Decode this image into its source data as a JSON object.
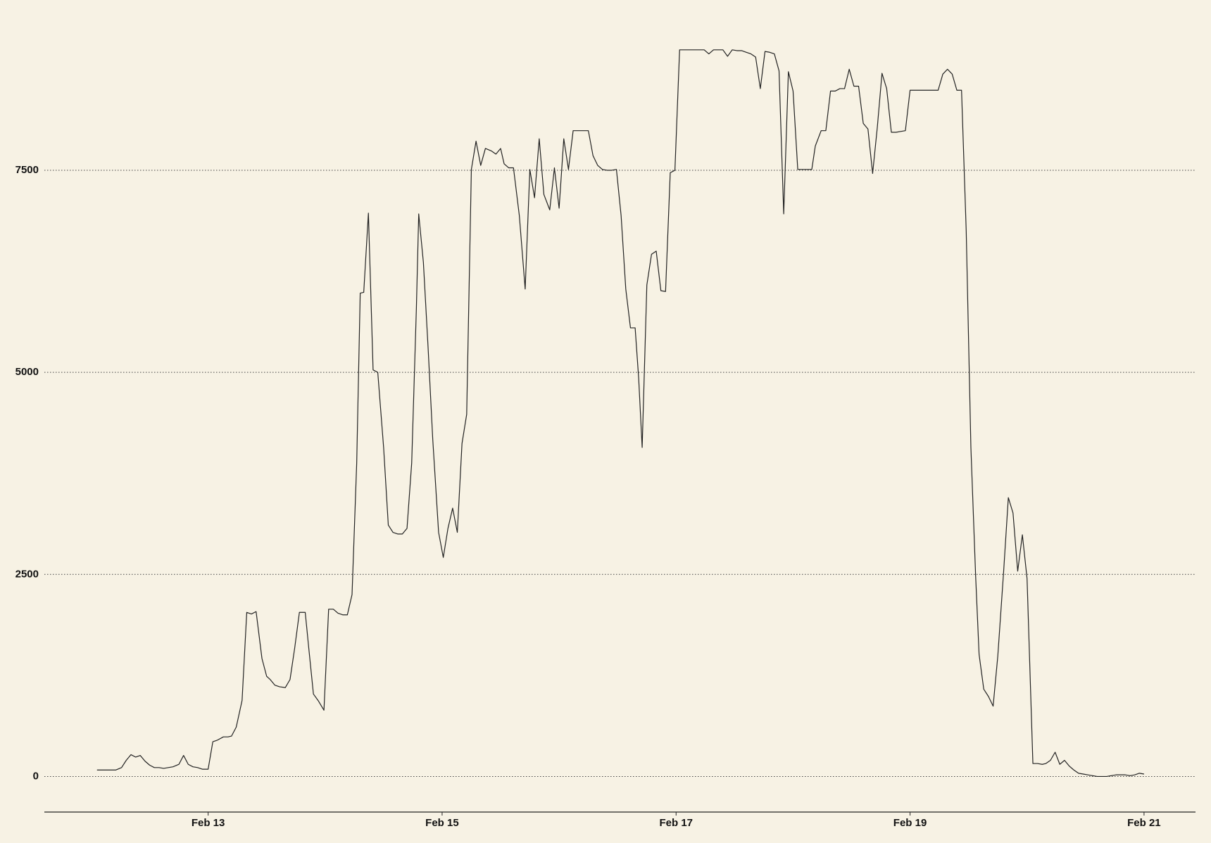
{
  "chart_data": {
    "type": "line",
    "color": "#222222",
    "grid": true,
    "xlim": [
      11.6,
      21.44
    ],
    "ylim": [
      -440,
      9180
    ],
    "xticks": [
      {
        "value": 13,
        "label": "Feb 13"
      },
      {
        "value": 15,
        "label": "Feb 15"
      },
      {
        "value": 17,
        "label": "Feb 17"
      },
      {
        "value": 19,
        "label": "Feb 19"
      },
      {
        "value": 21,
        "label": "Feb 21"
      }
    ],
    "yticks": [
      0,
      2500,
      5000,
      7500
    ],
    "x": [
      12.05,
      12.21,
      12.26,
      12.3,
      12.34,
      12.38,
      12.42,
      12.46,
      12.5,
      12.54,
      12.58,
      12.62,
      12.66,
      12.7,
      12.75,
      12.79,
      12.83,
      12.87,
      12.91,
      12.95,
      13.0,
      13.04,
      13.08,
      13.13,
      13.17,
      13.2,
      13.24,
      13.29,
      13.33,
      13.37,
      13.41,
      13.46,
      13.5,
      13.53,
      13.57,
      13.61,
      13.66,
      13.7,
      13.74,
      13.78,
      13.83,
      13.86,
      13.9,
      13.94,
      13.99,
      14.03,
      14.07,
      14.11,
      14.15,
      14.19,
      14.23,
      14.27,
      14.3,
      14.33,
      14.37,
      14.41,
      14.45,
      14.5,
      14.54,
      14.58,
      14.62,
      14.66,
      14.7,
      14.74,
      14.78,
      14.8,
      14.84,
      14.88,
      14.92,
      14.97,
      15.01,
      15.05,
      15.09,
      15.13,
      15.17,
      15.21,
      15.25,
      15.29,
      15.33,
      15.37,
      15.42,
      15.46,
      15.5,
      15.53,
      15.57,
      15.61,
      15.66,
      15.71,
      15.75,
      15.79,
      15.83,
      15.87,
      15.92,
      15.96,
      16.0,
      16.04,
      16.08,
      16.12,
      16.16,
      16.2,
      16.25,
      16.29,
      16.33,
      16.37,
      16.41,
      16.45,
      16.49,
      16.53,
      16.57,
      16.61,
      16.65,
      16.68,
      16.71,
      16.75,
      16.79,
      16.83,
      16.87,
      16.91,
      16.95,
      16.99,
      17.03,
      17.08,
      17.12,
      17.16,
      17.2,
      17.24,
      17.28,
      17.32,
      17.36,
      17.4,
      17.44,
      17.48,
      17.52,
      17.56,
      17.6,
      17.64,
      17.68,
      17.72,
      17.76,
      17.8,
      17.84,
      17.88,
      17.92,
      17.96,
      18.0,
      18.04,
      18.08,
      18.12,
      18.16,
      18.19,
      18.24,
      18.28,
      18.32,
      18.36,
      18.4,
      18.44,
      18.48,
      18.52,
      18.56,
      18.6,
      18.64,
      18.68,
      18.72,
      18.76,
      18.8,
      18.84,
      18.88,
      18.92,
      18.96,
      19.0,
      19.04,
      19.08,
      19.12,
      19.16,
      19.2,
      19.24,
      19.28,
      19.32,
      19.36,
      19.4,
      19.44,
      19.48,
      19.52,
      19.56,
      19.59,
      19.63,
      19.67,
      19.71,
      19.75,
      19.8,
      19.84,
      19.88,
      19.92,
      19.96,
      20.0,
      20.05,
      20.09,
      20.13,
      20.16,
      20.2,
      20.24,
      20.28,
      20.32,
      20.36,
      20.4,
      20.44,
      20.48,
      20.52,
      20.56,
      20.6,
      20.64,
      20.68,
      20.72,
      20.76,
      20.8,
      20.84,
      20.88,
      20.92,
      20.96,
      21.0
    ],
    "values": [
      80,
      80,
      110,
      200,
      270,
      240,
      260,
      190,
      140,
      110,
      110,
      100,
      110,
      120,
      150,
      260,
      150,
      120,
      110,
      90,
      90,
      430,
      450,
      490,
      490,
      500,
      610,
      940,
      2030,
      2010,
      2040,
      1460,
      1240,
      1200,
      1130,
      1110,
      1100,
      1200,
      1590,
      2030,
      2030,
      1590,
      1020,
      940,
      820,
      2070,
      2070,
      2020,
      2000,
      2000,
      2250,
      3880,
      5980,
      5990,
      6970,
      5030,
      5000,
      4070,
      3110,
      3020,
      3000,
      3000,
      3070,
      3880,
      5790,
      6960,
      6360,
      5310,
      4170,
      3020,
      2710,
      3070,
      3320,
      3020,
      4120,
      4480,
      7510,
      7860,
      7560,
      7770,
      7740,
      7700,
      7770,
      7580,
      7530,
      7530,
      6940,
      6030,
      7510,
      7160,
      7890,
      7200,
      7010,
      7530,
      7030,
      7890,
      7510,
      7990,
      7990,
      7990,
      7990,
      7680,
      7560,
      7510,
      7500,
      7500,
      7510,
      6940,
      6030,
      5550,
      5550,
      4930,
      4070,
      6080,
      6460,
      6500,
      6010,
      6000,
      7470,
      7500,
      8990,
      8990,
      8990,
      8990,
      8990,
      8990,
      8940,
      8990,
      8990,
      8990,
      8910,
      8990,
      8980,
      8980,
      8960,
      8940,
      8900,
      8510,
      8970,
      8960,
      8940,
      8730,
      6960,
      8720,
      8480,
      7510,
      7510,
      7510,
      7510,
      7800,
      7990,
      7990,
      8480,
      8480,
      8510,
      8510,
      8750,
      8540,
      8540,
      8080,
      8010,
      7460,
      8030,
      8700,
      8510,
      7970,
      7970,
      7980,
      7990,
      8490,
      8490,
      8490,
      8490,
      8490,
      8490,
      8490,
      8690,
      8750,
      8690,
      8490,
      8490,
      6750,
      4070,
      2500,
      1510,
      1080,
      990,
      870,
      1490,
      2540,
      3450,
      3260,
      2540,
      2990,
      2450,
      160,
      160,
      150,
      160,
      200,
      300,
      150,
      200,
      130,
      80,
      40,
      30,
      20,
      10,
      0,
      0,
      0,
      10,
      20,
      20,
      20,
      10,
      20,
      40,
      30
    ]
  }
}
